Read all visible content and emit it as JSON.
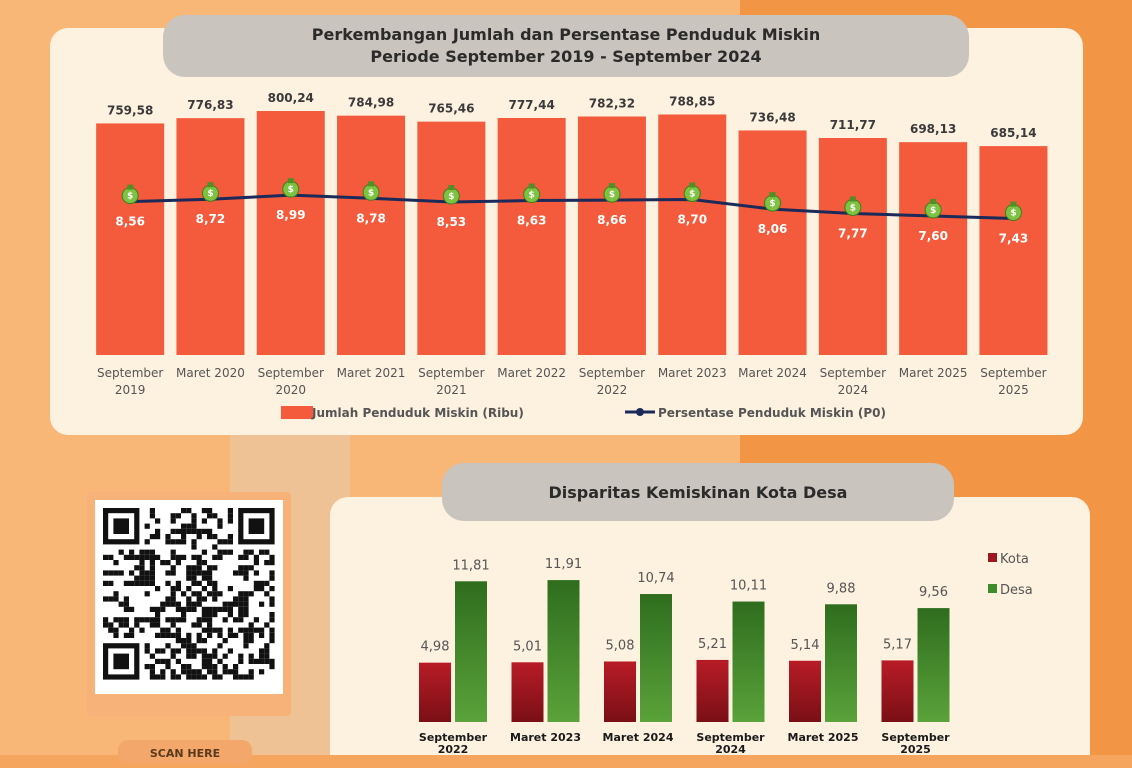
{
  "top_chart": {
    "title_line1": "Perkembangan Jumlah dan Persentase Penduduk Miskin",
    "title_line2": "Periode September 2019 - September 2024",
    "legend_bar": "Jumlah Penduduk Miskin (Ribu)",
    "legend_line": "Persentase Penduduk Miskin (P0)"
  },
  "bottom_chart": {
    "title": "Disparitas Kemiskinan Kota Desa",
    "legend_kota": "Kota",
    "legend_desa": "Desa"
  },
  "qr": {
    "label": "SCAN HERE"
  },
  "colors": {
    "bar": "#f45a3c",
    "line": "#1c2a5a",
    "kota": "#9e1620",
    "desa": "#3f8a2a",
    "marker": "#7ec242"
  },
  "chart_data": [
    {
      "type": "bar",
      "categories": [
        [
          "September",
          "2019"
        ],
        [
          "Maret 2020"
        ],
        [
          "September",
          "2020"
        ],
        [
          "Maret 2021"
        ],
        [
          "September",
          "2021"
        ],
        [
          "Maret 2022"
        ],
        [
          "September",
          "2022"
        ],
        [
          "Maret 2023"
        ],
        [
          "Maret 2024"
        ],
        [
          "September",
          "2024"
        ],
        [
          "Maret 2025"
        ],
        [
          "September",
          "2025"
        ]
      ],
      "series": [
        {
          "name": "Jumlah Penduduk Miskin (Ribu)",
          "type": "bar",
          "values": [
            759.58,
            776.83,
            800.24,
            784.98,
            765.46,
            777.44,
            782.32,
            788.85,
            736.48,
            711.77,
            698.13,
            685.14
          ],
          "labels": [
            "759,58",
            "776,83",
            "800,24",
            "784,98",
            "765,46",
            "777,44",
            "782,32",
            "788,85",
            "736,48",
            "711,77",
            "698,13",
            "685,14"
          ]
        },
        {
          "name": "Persentase Penduduk Miskin (P0)",
          "type": "line",
          "values": [
            8.56,
            8.72,
            8.99,
            8.78,
            8.53,
            8.63,
            8.66,
            8.7,
            8.06,
            7.77,
            7.6,
            7.43
          ],
          "labels": [
            "8,56",
            "8,72",
            "8,99",
            "8,78",
            "8,53",
            "8,63",
            "8,66",
            "8,70",
            "8,06",
            "7,77",
            "7,60",
            "7,43"
          ]
        }
      ],
      "ylim": [
        0,
        820
      ],
      "line_ylim": [
        0,
        20
      ],
      "legend": "bottom"
    },
    {
      "type": "bar",
      "categories": [
        [
          "September",
          "2022"
        ],
        [
          "Maret 2023"
        ],
        [
          "Maret 2024"
        ],
        [
          "September",
          "2024"
        ],
        [
          "Maret 2025"
        ],
        [
          "September",
          "2025"
        ]
      ],
      "series": [
        {
          "name": "Kota",
          "values": [
            4.98,
            5.01,
            5.08,
            5.21,
            5.14,
            5.17
          ],
          "labels": [
            "4,98",
            "5,01",
            "5,08",
            "5,21",
            "5,14",
            "5,17"
          ]
        },
        {
          "name": "Desa",
          "values": [
            11.81,
            11.91,
            10.74,
            10.11,
            9.88,
            9.56
          ],
          "labels": [
            "11,81",
            "11,91",
            "10,74",
            "10,11",
            "9,88",
            "9,56"
          ]
        }
      ],
      "ylim": [
        0,
        14
      ],
      "legend": "right"
    }
  ]
}
